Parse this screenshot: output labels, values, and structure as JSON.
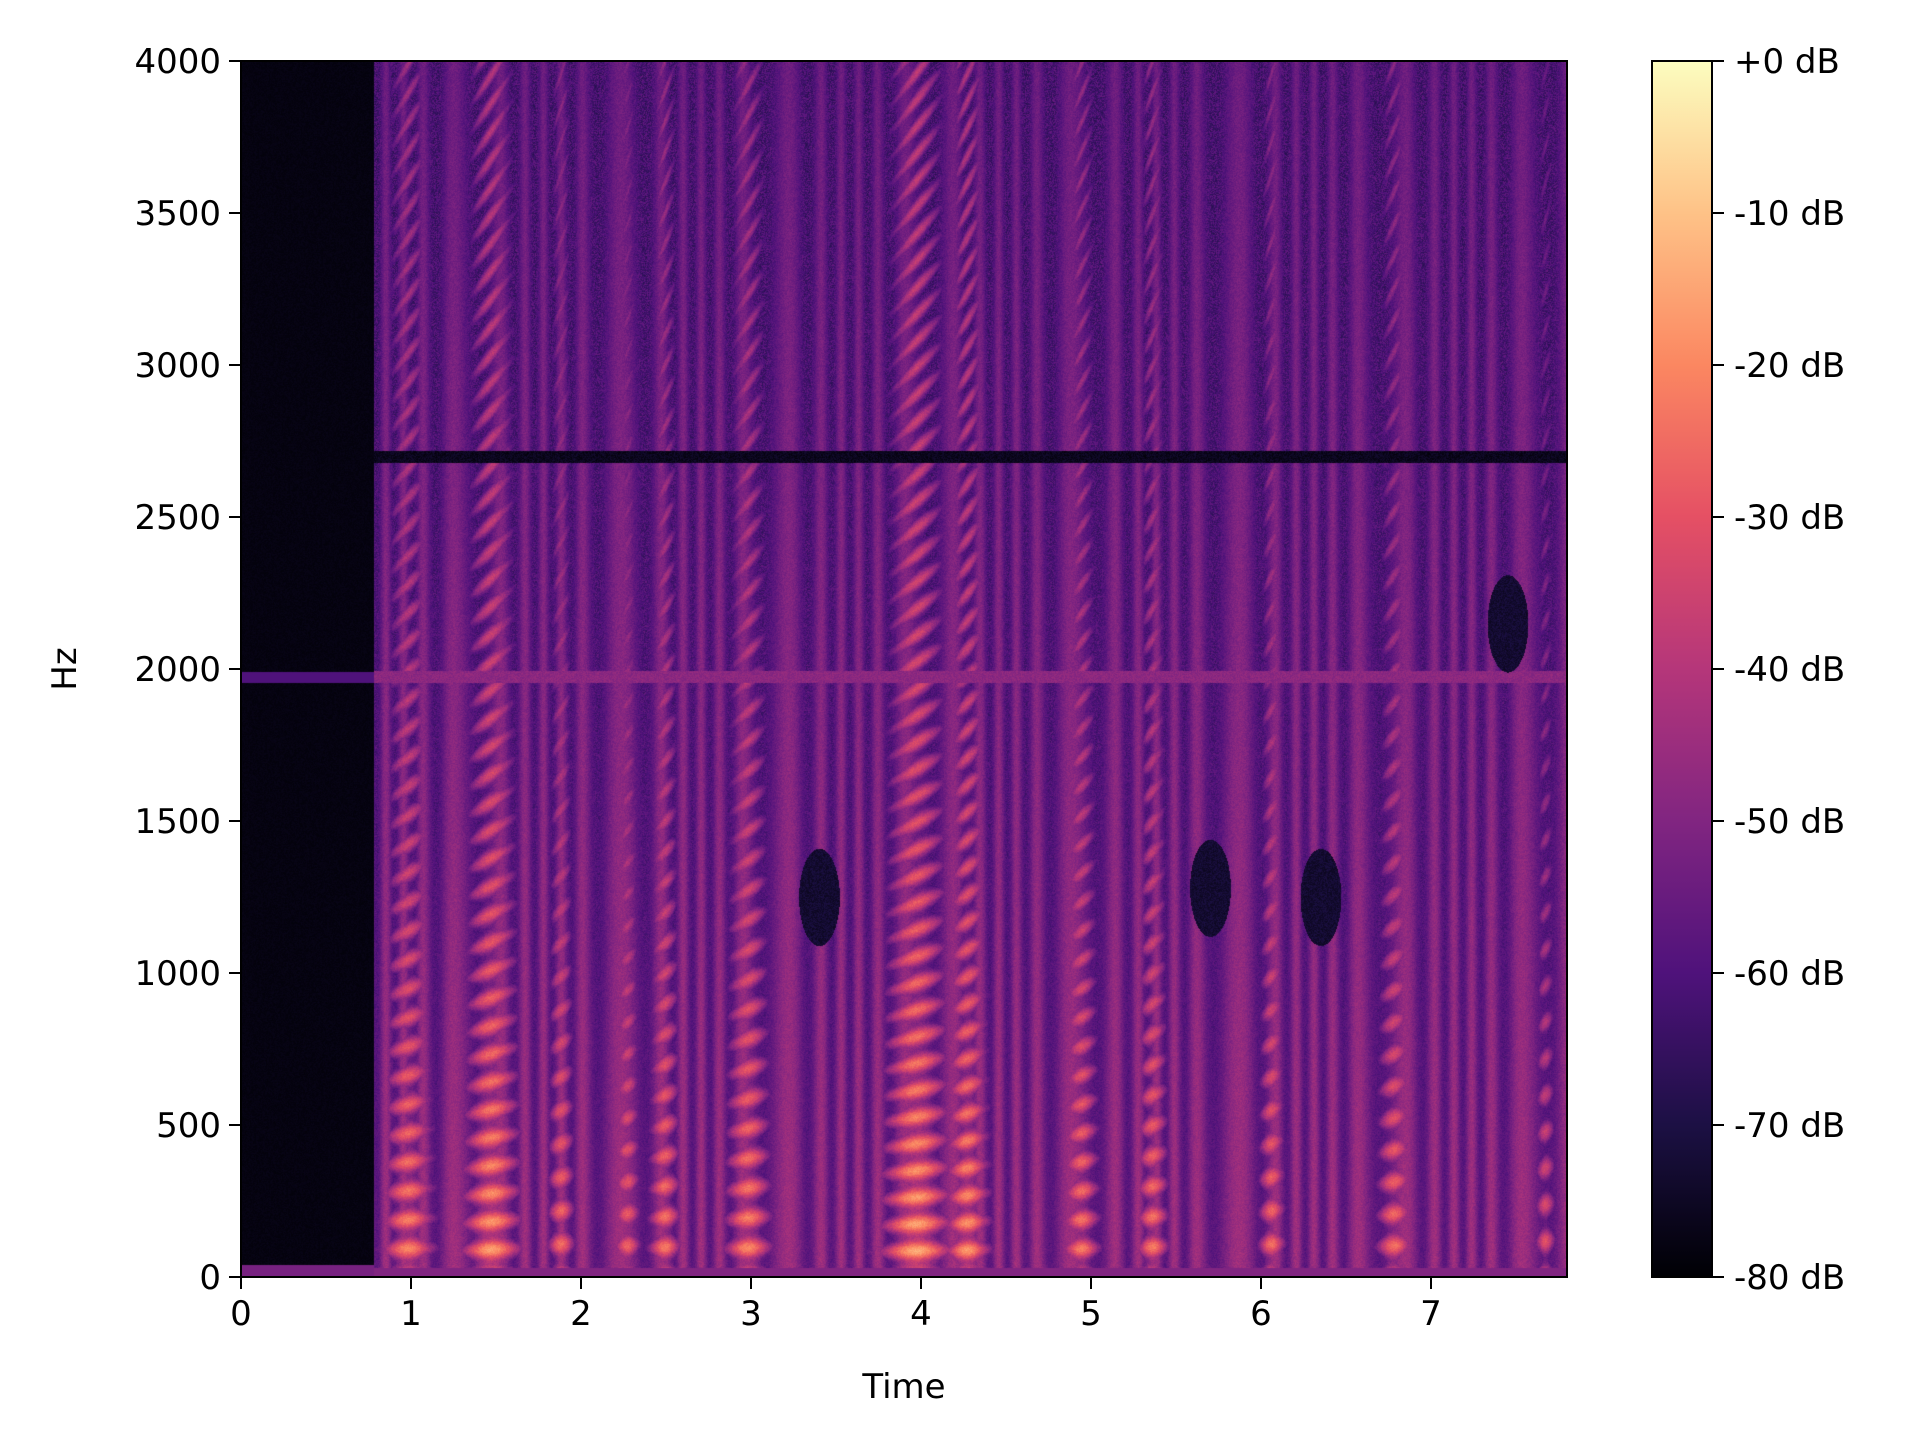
{
  "chart_data": {
    "type": "heatmap",
    "title": "",
    "xlabel": "Time",
    "ylabel": "Hz",
    "xlim": [
      0,
      7.8
    ],
    "ylim": [
      0,
      4000
    ],
    "x_ticks": [
      {
        "value": 0,
        "label": "0"
      },
      {
        "value": 1,
        "label": "1"
      },
      {
        "value": 2,
        "label": "2"
      },
      {
        "value": 3,
        "label": "3"
      },
      {
        "value": 4,
        "label": "4"
      },
      {
        "value": 5,
        "label": "5"
      },
      {
        "value": 6,
        "label": "6"
      },
      {
        "value": 7,
        "label": "7"
      }
    ],
    "y_ticks": [
      {
        "value": 0,
        "label": "0"
      },
      {
        "value": 500,
        "label": "500"
      },
      {
        "value": 1000,
        "label": "1000"
      },
      {
        "value": 1500,
        "label": "1500"
      },
      {
        "value": 2000,
        "label": "2000"
      },
      {
        "value": 2500,
        "label": "2500"
      },
      {
        "value": 3000,
        "label": "3000"
      },
      {
        "value": 3500,
        "label": "3500"
      },
      {
        "value": 4000,
        "label": "4000"
      }
    ],
    "colorbar": {
      "colormap": "magma",
      "range": [
        -80,
        0
      ],
      "ticks": [
        {
          "value": 0,
          "label": "+0 dB"
        },
        {
          "value": -10,
          "label": "-10 dB"
        },
        {
          "value": -20,
          "label": "-20 dB"
        },
        {
          "value": -30,
          "label": "-30 dB"
        },
        {
          "value": -40,
          "label": "-40 dB"
        },
        {
          "value": -50,
          "label": "-50 dB"
        },
        {
          "value": -60,
          "label": "-60 dB"
        },
        {
          "value": -70,
          "label": "-70 dB"
        },
        {
          "value": -80,
          "label": "-80 dB"
        }
      ]
    },
    "silence_until_s": 0.78,
    "background_db": -62,
    "voiced_segments": [
      {
        "t": 0.98,
        "w": 0.22,
        "f0": 95,
        "db": -18
      },
      {
        "t": 1.47,
        "w": 0.24,
        "f0": 92,
        "db": -14
      },
      {
        "t": 1.88,
        "w": 0.12,
        "f0": 110,
        "db": -22
      },
      {
        "t": 2.27,
        "w": 0.12,
        "f0": 105,
        "db": -24
      },
      {
        "t": 2.49,
        "w": 0.14,
        "f0": 100,
        "db": -20
      },
      {
        "t": 2.98,
        "w": 0.2,
        "f0": 98,
        "db": -18
      },
      {
        "t": 3.97,
        "w": 0.28,
        "f0": 88,
        "db": -12
      },
      {
        "t": 4.27,
        "w": 0.18,
        "f0": 90,
        "db": -15
      },
      {
        "t": 4.94,
        "w": 0.16,
        "f0": 95,
        "db": -20
      },
      {
        "t": 5.36,
        "w": 0.14,
        "f0": 100,
        "db": -20
      },
      {
        "t": 6.06,
        "w": 0.12,
        "f0": 110,
        "db": -22
      },
      {
        "t": 6.78,
        "w": 0.16,
        "f0": 105,
        "db": -22
      },
      {
        "t": 7.67,
        "w": 0.1,
        "f0": 120,
        "db": -28
      }
    ],
    "noise_bands": [
      {
        "f": 1975,
        "db": -48
      },
      {
        "f": 2700,
        "db": -76
      }
    ],
    "quiet_regions": [
      {
        "t": 3.4,
        "f": 1250,
        "db": -76
      },
      {
        "t": 5.7,
        "f": 1280,
        "db": -76
      },
      {
        "t": 6.35,
        "f": 1250,
        "db": -76
      },
      {
        "t": 7.45,
        "f": 2150,
        "db": -76
      }
    ]
  }
}
